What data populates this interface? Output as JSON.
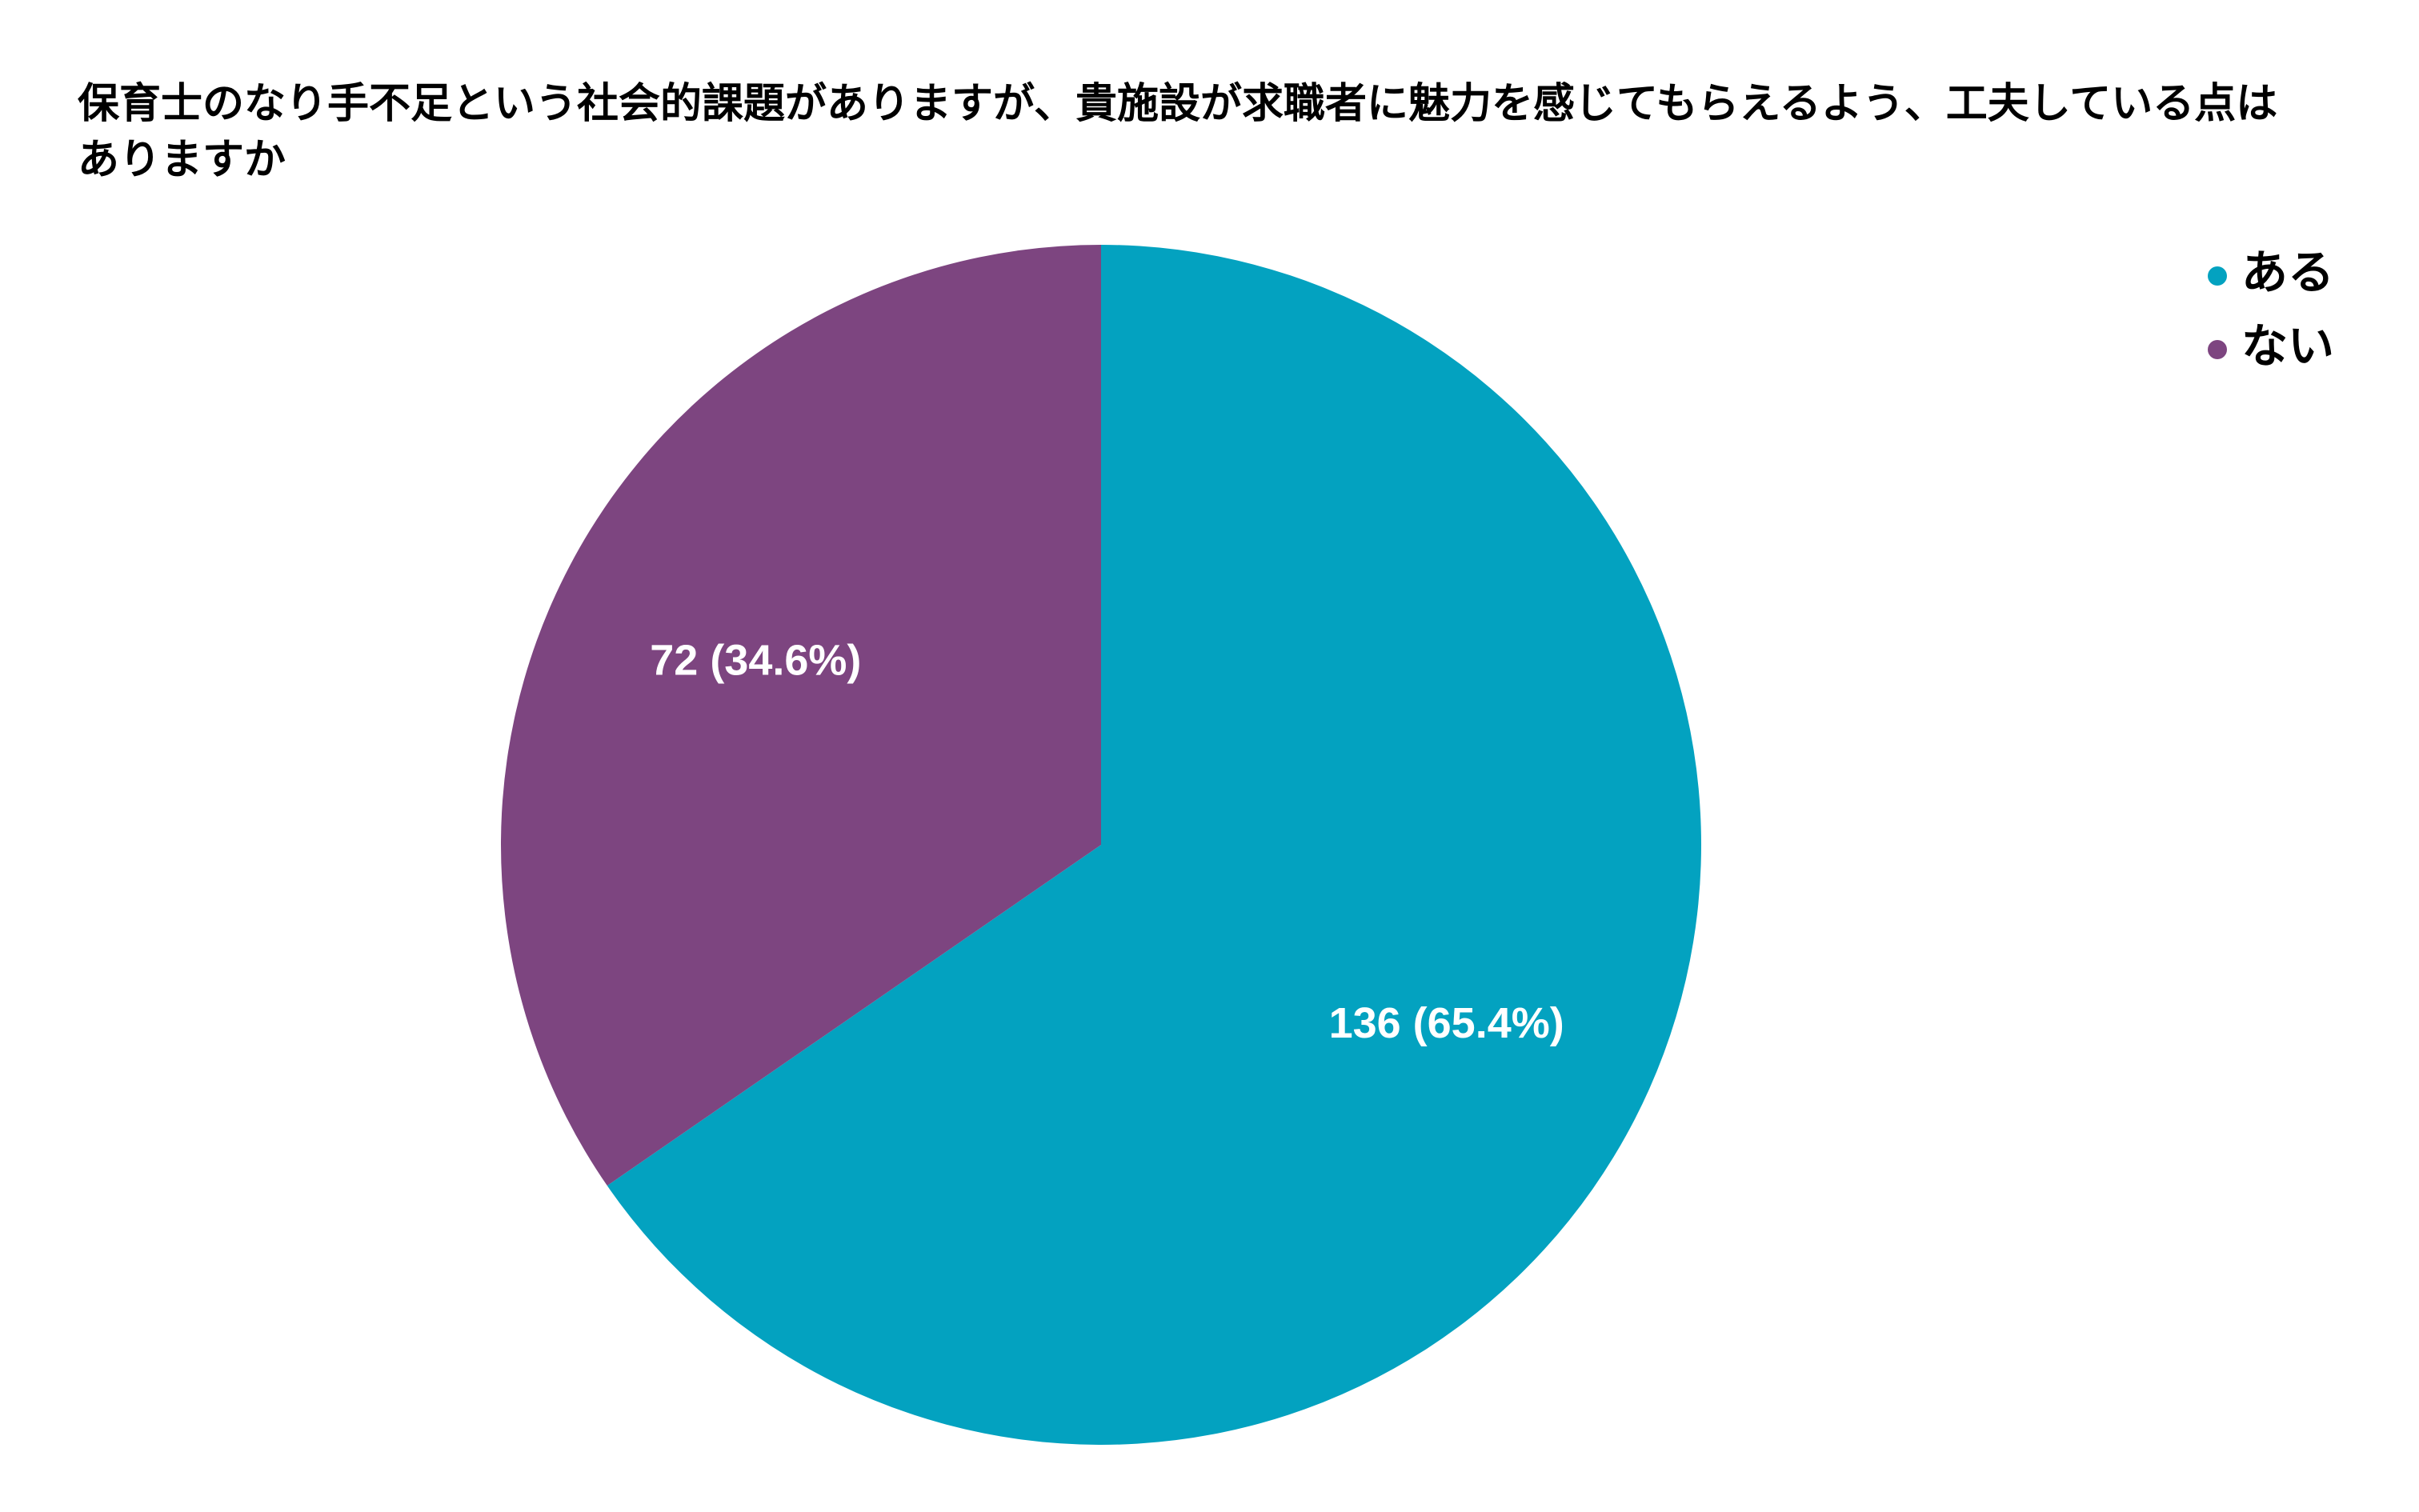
{
  "chart_data": {
    "type": "pie",
    "title": "保育士のなり手不足という社会的課題がありますが、貴施設が求職者に魅力を感じてもらえるよう、工夫している点はありますか",
    "categories": [
      "ある",
      "ない"
    ],
    "values": [
      136,
      72
    ],
    "value_labels": [
      "136 (65.4%)",
      "72 (34.6%)"
    ],
    "colors": [
      "#03a2c0",
      "#7d4580"
    ],
    "legend": "top-right"
  }
}
